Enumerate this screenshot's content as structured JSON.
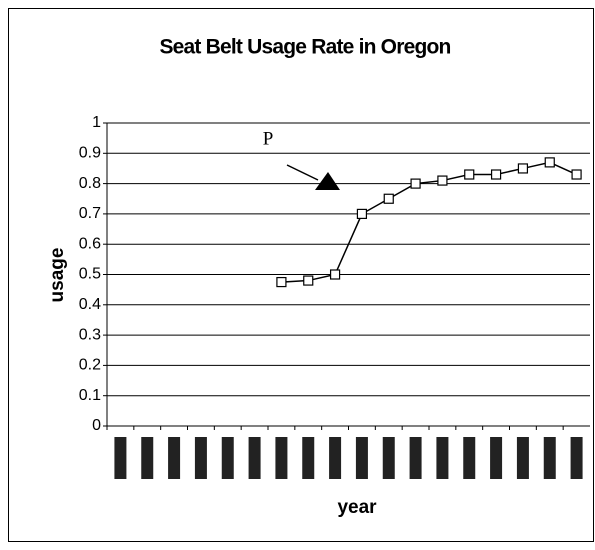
{
  "chart_data": {
    "type": "line",
    "title": "Seat Belt Usage Rate in Oregon",
    "x_label": "year",
    "y_label": "usage",
    "categories": [
      null,
      null,
      null,
      null,
      null,
      null,
      null,
      null,
      null,
      null,
      null,
      null,
      null,
      null,
      null,
      null,
      null,
      null
    ],
    "values": [
      null,
      null,
      null,
      null,
      null,
      null,
      0.475,
      0.48,
      0.5,
      0.7,
      0.75,
      0.8,
      0.81,
      0.83,
      0.83,
      0.85,
      0.87,
      0.83
    ],
    "color": "#000000",
    "ylim": [
      0,
      1
    ],
    "yticks": [
      0,
      0.1,
      0.2,
      0.3,
      0.4,
      0.5,
      0.6,
      0.7,
      0.8,
      0.9,
      1
    ],
    "grid": true,
    "annotation": "P"
  }
}
